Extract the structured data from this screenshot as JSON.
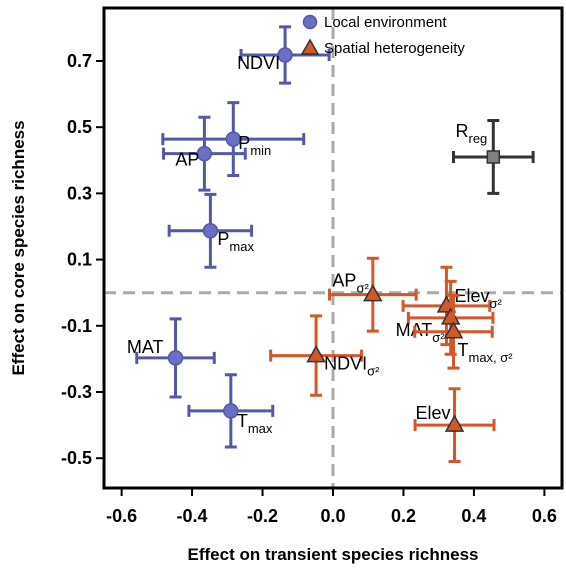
{
  "chart_data": {
    "type": "scatter",
    "x_label": "Effect on transient species richness",
    "y_label": "Effect on core species richness",
    "xlim": [
      -0.65,
      0.65
    ],
    "ylim": [
      -0.59,
      0.86
    ],
    "xticks": [
      -0.6,
      -0.4,
      -0.2,
      {
        "value": 0,
        "label": "0.0"
      },
      0.2,
      0.4,
      0.6
    ],
    "yticks": [
      0.7,
      0.5,
      0.3,
      0.1,
      -0.1,
      -0.3,
      -0.5
    ],
    "vlines": [
      0
    ],
    "hlines": [
      0
    ],
    "legend": "upper right",
    "series": [
      {
        "name": "Local environment",
        "color": "#6a6ec4",
        "edge": "#5558a8",
        "marker": "circle",
        "labels": [
          "NDVI",
          "P",
          "AP",
          "P",
          "MAT",
          "T"
        ],
        "label_subs": [
          null,
          "min",
          null,
          "max",
          null,
          "max"
        ],
        "x": [
          -0.136,
          -0.283,
          -0.365,
          -0.348,
          -0.447,
          -0.29
        ],
        "values": [
          0.718,
          0.464,
          0.42,
          0.187,
          -0.197,
          -0.357
        ],
        "xerr": [
          0.125,
          0.2,
          0.116,
          0.117,
          0.11,
          0.119
        ],
        "yerr": [
          0.085,
          0.11,
          0.11,
          0.11,
          0.118,
          0.109
        ]
      },
      {
        "name": "Spatial heterogeneity",
        "color": "#d2582a",
        "edge": "#d2582a",
        "marker": "triangle",
        "labels": [
          "AP",
          "NDVI",
          "Elev",
          "MAT",
          "T",
          "Elev"
        ],
        "label_subs": [
          "σ²",
          "σ²",
          "σ²",
          "σ²",
          "max, σ²",
          null
        ],
        "x": [
          0.113,
          -0.048,
          0.322,
          0.334,
          0.342,
          0.345
        ],
        "values": [
          -0.006,
          -0.19,
          -0.04,
          -0.076,
          -0.118,
          -0.4
        ],
        "xerr": [
          0.123,
          0.129,
          0.123,
          0.12,
          0.11,
          0.112
        ],
        "yerr": [
          0.11,
          0.12,
          0.117,
          0.11,
          0.11,
          0.11
        ]
      },
      {
        "color": "#808080",
        "edge": "#333333",
        "marker": "square",
        "labels": [
          "R"
        ],
        "label_subs": [
          "reg"
        ],
        "x": [
          0.455
        ],
        "values": [
          0.41
        ],
        "xerr": [
          0.113
        ],
        "yerr": [
          0.11
        ]
      }
    ]
  }
}
